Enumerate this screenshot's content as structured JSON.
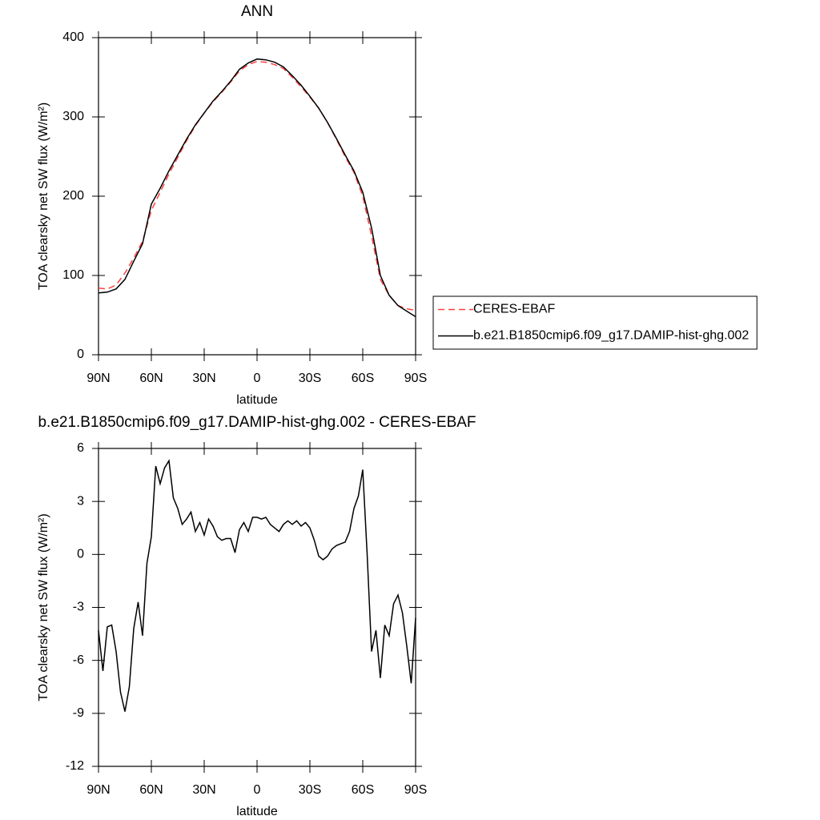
{
  "chart_data": [
    {
      "type": "line",
      "title": "ANN",
      "xlabel": "latitude",
      "ylabel": "TOA clearsky net SW flux (W/m²)",
      "x": [
        90,
        85,
        80,
        75,
        70,
        65,
        60,
        55,
        50,
        45,
        40,
        35,
        30,
        25,
        20,
        15,
        10,
        5,
        0,
        -5,
        -10,
        -15,
        -20,
        -25,
        -30,
        -35,
        -40,
        -45,
        -50,
        -55,
        -60,
        -65,
        -70,
        -75,
        -80,
        -85,
        -90
      ],
      "series": [
        {
          "name": "CERES-EBAF",
          "color": "#ff4040",
          "linestyle": "dashed",
          "values": [
            84,
            83,
            88,
            103,
            122,
            143,
            182,
            205,
            228,
            249,
            270,
            289,
            305,
            319,
            331,
            344,
            358,
            366,
            370,
            369,
            366,
            361,
            350,
            338,
            325,
            311,
            293,
            272,
            250,
            230,
            200,
            150,
            95,
            75,
            62,
            58,
            56
          ]
        },
        {
          "name": "b.e21.B1850cmip6.f09_g17.DAMIP-hist-ghg.002",
          "color": "#000000",
          "linestyle": "solid",
          "values": [
            78,
            79,
            83,
            95,
            118,
            140,
            190,
            210,
            232,
            252,
            272,
            290,
            305,
            320,
            332,
            345,
            360,
            368,
            373,
            372,
            369,
            363,
            352,
            340,
            326,
            311,
            293,
            273,
            252,
            232,
            205,
            160,
            100,
            75,
            62,
            55,
            48
          ]
        }
      ],
      "xlim": [
        90,
        -90
      ],
      "xticks": [
        {
          "value": 90,
          "label": "90N"
        },
        {
          "value": 60,
          "label": "60N"
        },
        {
          "value": 30,
          "label": "30N"
        },
        0,
        {
          "value": -30,
          "label": "30S"
        },
        {
          "value": -60,
          "label": "60S"
        },
        {
          "value": -90,
          "label": "90S"
        }
      ],
      "ylim": [
        0,
        400
      ],
      "yticks": [
        0,
        100,
        200,
        300,
        400
      ],
      "legend": "right"
    },
    {
      "type": "line",
      "title": "b.e21.B1850cmip6.f09_g17.DAMIP-hist-ghg.002 - CERES-EBAF",
      "xlabel": "latitude",
      "ylabel": "TOA clearsky net SW flux (W/m²)",
      "x": [
        90,
        87.5,
        85,
        82.5,
        80,
        77.5,
        75,
        72.5,
        70,
        67.5,
        65,
        62.5,
        60,
        57.5,
        55,
        52.5,
        50,
        47.5,
        45,
        42.5,
        40,
        37.5,
        35,
        32.5,
        30,
        27.5,
        25,
        22.5,
        20,
        17.5,
        15,
        12.5,
        10,
        7.5,
        5,
        2.5,
        0,
        -2.5,
        -5,
        -7.5,
        -10,
        -12.5,
        -15,
        -17.5,
        -20,
        -22.5,
        -25,
        -27.5,
        -30,
        -32.5,
        -35,
        -37.5,
        -40,
        -42.5,
        -45,
        -47.5,
        -50,
        -52.5,
        -55,
        -57.5,
        -60,
        -62.5,
        -65,
        -67.5,
        -70,
        -72.5,
        -75,
        -77.5,
        -80,
        -82.5,
        -85,
        -87.5,
        -90
      ],
      "values": [
        -4.3,
        -6.6,
        -4.1,
        -4.0,
        -5.5,
        -7.8,
        -8.9,
        -7.5,
        -4.2,
        -2.7,
        -4.6,
        -0.5,
        1.0,
        5.0,
        4.0,
        4.9,
        5.3,
        3.2,
        2.6,
        1.7,
        2.0,
        2.4,
        1.3,
        1.8,
        1.1,
        2.0,
        1.6,
        1.0,
        0.8,
        0.9,
        0.9,
        0.1,
        1.4,
        1.8,
        1.3,
        2.1,
        2.1,
        2.0,
        2.1,
        1.7,
        1.5,
        1.3,
        1.7,
        1.9,
        1.7,
        1.9,
        1.6,
        1.8,
        1.5,
        0.8,
        -0.1,
        -0.3,
        -0.1,
        0.3,
        0.5,
        0.6,
        0.7,
        1.3,
        2.6,
        3.3,
        4.8,
        0.0,
        -5.5,
        -4.3,
        -7.0,
        -4.0,
        -4.6,
        -2.8,
        -2.3,
        -3.3,
        -5.2,
        -7.3,
        -3.6
      ],
      "color": "#000000",
      "xlim": [
        90,
        -90
      ],
      "xticks": [
        {
          "value": 90,
          "label": "90N"
        },
        {
          "value": 60,
          "label": "60N"
        },
        {
          "value": 30,
          "label": "30N"
        },
        0,
        {
          "value": -30,
          "label": "30S"
        },
        {
          "value": -60,
          "label": "60S"
        },
        {
          "value": -90,
          "label": "90S"
        }
      ],
      "ylim": [
        -12,
        6
      ],
      "yticks": [
        -12,
        -9,
        -6,
        -3,
        0,
        3,
        6
      ]
    }
  ]
}
